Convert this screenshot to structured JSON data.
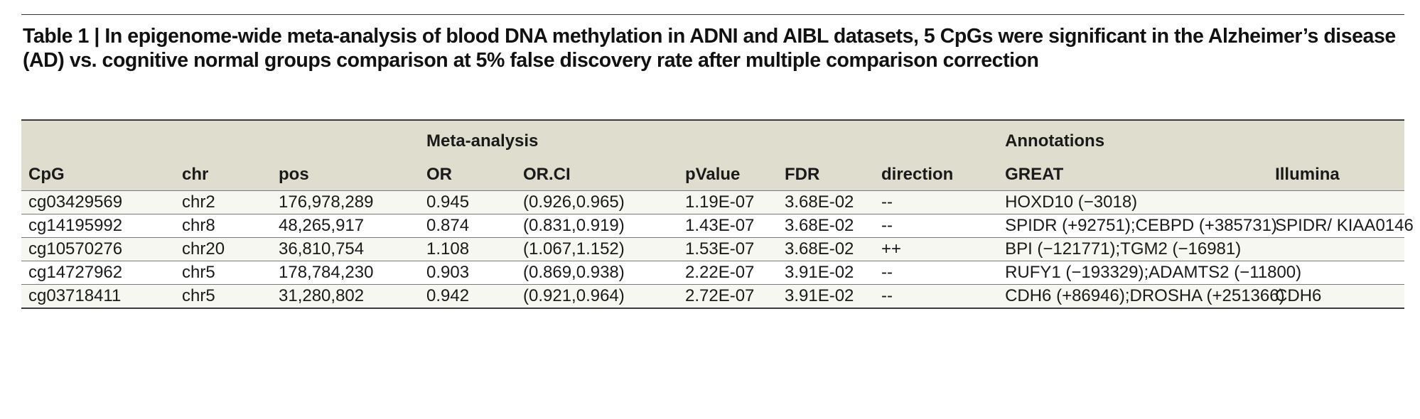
{
  "caption": "Table 1 | In epigenome-wide meta-analysis of blood DNA methylation in ADNI and AIBL datasets, 5 CpGs were significant in the Alzheimer’s disease (AD) vs. cognitive normal groups comparison at 5% false discovery rate after multiple comparison correction",
  "groups": {
    "meta": "Meta-analysis",
    "annotations": "Annotations"
  },
  "columns": {
    "cpg": "CpG",
    "chr": "chr",
    "pos": "pos",
    "or": "OR",
    "orci": "OR.CI",
    "pvalue": "pValue",
    "fdr": "FDR",
    "direction": "direction",
    "great": "GREAT",
    "illumina": "Illumina"
  },
  "rows": [
    {
      "cpg": "cg03429569",
      "chr": "chr2",
      "pos": "176,978,289",
      "or": "0.945",
      "orci": "(0.926,0.965)",
      "pvalue": "1.19E-07",
      "fdr": "3.68E-02",
      "direction": "--",
      "great": "HOXD10 (−3018)",
      "illumina": ""
    },
    {
      "cpg": "cg14195992",
      "chr": "chr8",
      "pos": "48,265,917",
      "or": "0.874",
      "orci": "(0.831,0.919)",
      "pvalue": "1.43E-07",
      "fdr": "3.68E-02",
      "direction": "--",
      "great": "SPIDR (+92751);CEBPD (+385731)",
      "illumina": "SPIDR/ KIAA0146"
    },
    {
      "cpg": "cg10570276",
      "chr": "chr20",
      "pos": "36,810,754",
      "or": "1.108",
      "orci": "(1.067,1.152)",
      "pvalue": "1.53E-07",
      "fdr": "3.68E-02",
      "direction": "++",
      "great": "BPI (−121771);TGM2 (−16981)",
      "illumina": ""
    },
    {
      "cpg": "cg14727962",
      "chr": "chr5",
      "pos": "178,784,230",
      "or": "0.903",
      "orci": "(0.869,0.938)",
      "pvalue": "2.22E-07",
      "fdr": "3.91E-02",
      "direction": "--",
      "great": "RUFY1 (−193329);ADAMTS2 (−11800)",
      "illumina": ""
    },
    {
      "cpg": "cg03718411",
      "chr": "chr5",
      "pos": "31,280,802",
      "or": "0.942",
      "orci": "(0.921,0.964)",
      "pvalue": "2.72E-07",
      "fdr": "3.91E-02",
      "direction": "--",
      "great": "CDH6 (+86946);DROSHA (+251366)",
      "illumina": "CDH6"
    }
  ],
  "colors": {
    "header_bg": "#deddce",
    "shaded_row_bg": "#f7f7f1",
    "rule": "#3a3a3a"
  }
}
